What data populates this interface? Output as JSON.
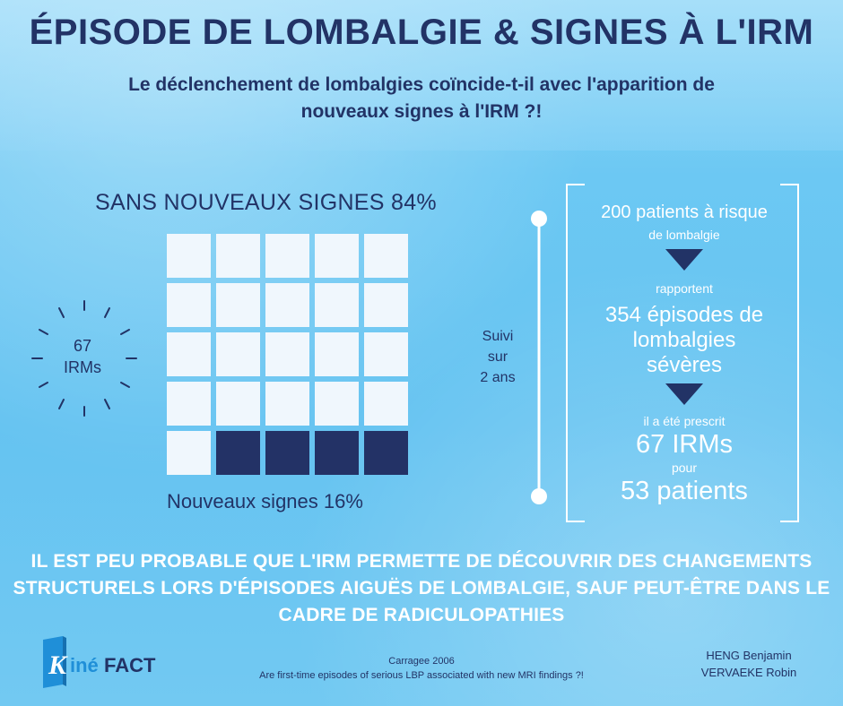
{
  "header": {
    "title": "ÉPISODE DE LOMBALGIE & SIGNES À L'IRM",
    "subtitle_line1": "Le déclenchement de lombalgies coïncide-t-il  avec  l'apparition de",
    "subtitle_line2": "nouveaux signes à l'IRM ?!"
  },
  "waffle": {
    "title": "SANS NOUVEAUX SIGNES 84%",
    "footer": "Nouveaux signes 16%",
    "cells_total": 25,
    "cells_new_signs": 4,
    "share_without_new_signs_pct": 84,
    "share_new_signs_pct": 16
  },
  "burst": {
    "line1": "67",
    "line2": "IRMs"
  },
  "timeline": {
    "line1": "Suivi",
    "line2": "sur",
    "line3": "2 ans"
  },
  "flow": {
    "step1_line1": "200 patients à risque",
    "step1_line2": "de lombalgie",
    "connector1": "rapportent",
    "step2_line1": "354 épisodes de",
    "step2_line2": "lombalgies",
    "step2_line3": "sévères",
    "connector2": "il a été prescrit",
    "step3": "67 IRMs",
    "connector3": "pour",
    "step4": "53 patients"
  },
  "conclusion": {
    "line1": "IL EST PEU PROBABLE QUE L'IRM PERMETTE DE DÉCOUVRIR DES CHANGEMENTS",
    "line2": "STRUCTURELS LORS  D'ÉPISODES AIGUËS DE LOMBALGIE, SAUF PEUT-ÊTRE DANS LE",
    "line3": "CADRE DE RADICULOPATHIES"
  },
  "footer": {
    "logo_text_k": "K",
    "logo_text_ine": "iné",
    "logo_text_fact": "FACT",
    "citation_line1": "Carragee 2006",
    "citation_line2": "Are first-time episodes of serious LBP associated with new MRI findings ?!",
    "author1": "HENG Benjamin",
    "author2": "VERVAEKE Robin"
  },
  "colors": {
    "navy": "#223366",
    "background_blue": "#6bc6f2",
    "cell_light": "#f0f7fd",
    "logo_blue": "#1f8fd8"
  }
}
